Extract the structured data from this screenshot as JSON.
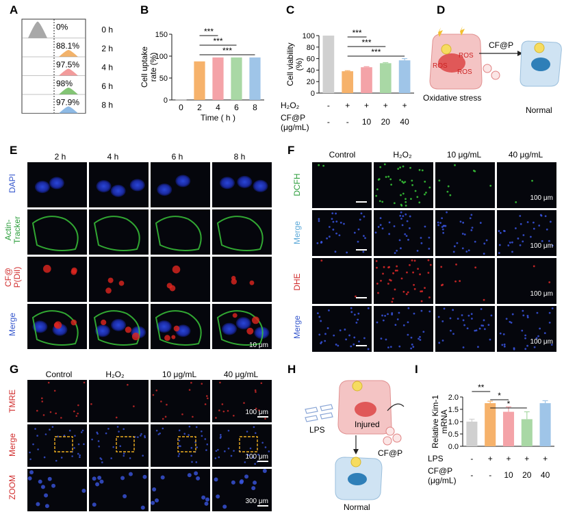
{
  "figure": {
    "panel_letters": [
      "A",
      "B",
      "C",
      "D",
      "E",
      "F",
      "G",
      "H",
      "I"
    ]
  },
  "chart_data": [
    {
      "panel": "A",
      "type": "histogram-overlay",
      "rows": [
        {
          "pct": "0%",
          "time": "0 h",
          "color": "#999999"
        },
        {
          "pct": "88.1%",
          "time": "2 h",
          "color": "#f0a550"
        },
        {
          "pct": "97.5%",
          "time": "4 h",
          "color": "#f08a8a"
        },
        {
          "pct": "98%",
          "time": "6 h",
          "color": "#6dbb5c"
        },
        {
          "pct": "97.9%",
          "time": "8 h",
          "color": "#7aaee0"
        }
      ]
    },
    {
      "panel": "B",
      "type": "bar",
      "ylabel_lines": [
        "Cell uptake",
        "rate (%)"
      ],
      "xlabel": "Time ( h )",
      "categories": [
        "0",
        "2",
        "4",
        "6",
        "8"
      ],
      "values": [
        0.5,
        88,
        97,
        97,
        97
      ],
      "colors": [
        "#cccccc",
        "#f6b26b",
        "#f4a3a8",
        "#a9d8a5",
        "#9fc5e8"
      ],
      "yticks": [
        "0",
        "50",
        "100",
        "150"
      ],
      "ylim": [
        0,
        150
      ],
      "significance": [
        {
          "from": 1,
          "to": 2,
          "label": "***"
        },
        {
          "from": 1,
          "to": 3,
          "label": "***"
        },
        {
          "from": 1,
          "to": 4,
          "label": "***"
        }
      ]
    },
    {
      "panel": "C",
      "type": "bar",
      "ylabel_lines": [
        "Cell viability",
        "(%)"
      ],
      "yticks": [
        "0",
        "20",
        "40",
        "60",
        "80",
        "100"
      ],
      "ylim": [
        0,
        100
      ],
      "values": [
        100,
        38,
        45,
        52,
        57
      ],
      "errors": [
        0,
        1,
        1,
        1,
        3
      ],
      "colors": [
        "#d0d0d0",
        "#f6b26b",
        "#f4a3a8",
        "#a9d8a5",
        "#9fc5e8"
      ],
      "row1_label": "H₂O₂",
      "row1": [
        "-",
        "+",
        "+",
        "+",
        "+"
      ],
      "row2_label_lines": [
        "CF@P",
        "(μg/mL)"
      ],
      "row2": [
        "-",
        "-",
        "10",
        "20",
        "40"
      ],
      "significance": [
        {
          "from": 1,
          "to": 2,
          "label": "***"
        },
        {
          "from": 1,
          "to": 3,
          "label": "***"
        },
        {
          "from": 1,
          "to": 4,
          "label": "***"
        }
      ]
    },
    {
      "panel": "I",
      "type": "bar",
      "ylabel_lines": [
        "Relative Kim-1",
        "mRNA"
      ],
      "yticks": [
        "0.0",
        "0.5",
        "1.0",
        "1.5",
        "2.0"
      ],
      "ylim": [
        0,
        2.0
      ],
      "values": [
        1.0,
        1.75,
        1.4,
        1.1,
        1.75
      ],
      "errors": [
        0.1,
        0.08,
        0.2,
        0.3,
        0.1
      ],
      "colors": [
        "#d0d0d0",
        "#f6b26b",
        "#f4a3a8",
        "#a9d8a5",
        "#9fc5e8"
      ],
      "row1_label": "LPS",
      "row1": [
        "-",
        "+",
        "+",
        "+",
        "+"
      ],
      "row2_label_lines": [
        "CF@P",
        "(μg/mL)"
      ],
      "row2": [
        "-",
        "-",
        "10",
        "20",
        "40"
      ],
      "significance": [
        {
          "from": 0,
          "to": 1,
          "label": "**"
        },
        {
          "from": 1,
          "to": 2,
          "label": "*"
        },
        {
          "from": 1,
          "to": 3,
          "label": "*"
        }
      ]
    }
  ],
  "panelD": {
    "ros_labels": [
      "ROS",
      "ROS",
      "ROS"
    ],
    "arrow_label": "CF@P",
    "left_caption": "Oxidative stress",
    "right_caption": "Normal"
  },
  "panelE": {
    "columns": [
      "2 h",
      "4 h",
      "6 h",
      "8 h"
    ],
    "row_labels": [
      {
        "lines": [
          "DAPI"
        ],
        "color": "#3355cc"
      },
      {
        "lines": [
          "Actin-",
          "Tracker"
        ],
        "color": "#2a9d3a"
      },
      {
        "lines": [
          "CF@",
          "P(DiI)"
        ],
        "color": "#d02a2a"
      },
      {
        "lines": [
          "Merge"
        ],
        "color": "multi"
      }
    ],
    "scale_label": "10 μm"
  },
  "panelF": {
    "columns": [
      "Control",
      "H₂O₂",
      "10 μg/mL",
      "40 μg/mL"
    ],
    "row_labels": [
      {
        "text": "DCFH",
        "color": "#2a9d3a"
      },
      {
        "text": "Merge",
        "color": "multi"
      },
      {
        "text": "DHE",
        "color": "#d02a2a"
      },
      {
        "text": "Merge",
        "color": "multi"
      }
    ],
    "scale_label": "100 μm"
  },
  "panelG": {
    "columns": [
      "Control",
      "H₂O₂",
      "10 μg/mL",
      "40 μg/mL"
    ],
    "row_labels": [
      {
        "text": "TMRE",
        "color": "#d02a2a"
      },
      {
        "text": "Merge",
        "color": "multi"
      },
      {
        "text": "ZOOM",
        "color": "#d02a2a"
      }
    ],
    "scale_labels": [
      "100 μm",
      "100 μm",
      "300 μm"
    ]
  },
  "panelH": {
    "lps_label": "LPS",
    "injured_label": "Injured",
    "cfp_label": "CF@P",
    "normal_label": "Normal"
  }
}
